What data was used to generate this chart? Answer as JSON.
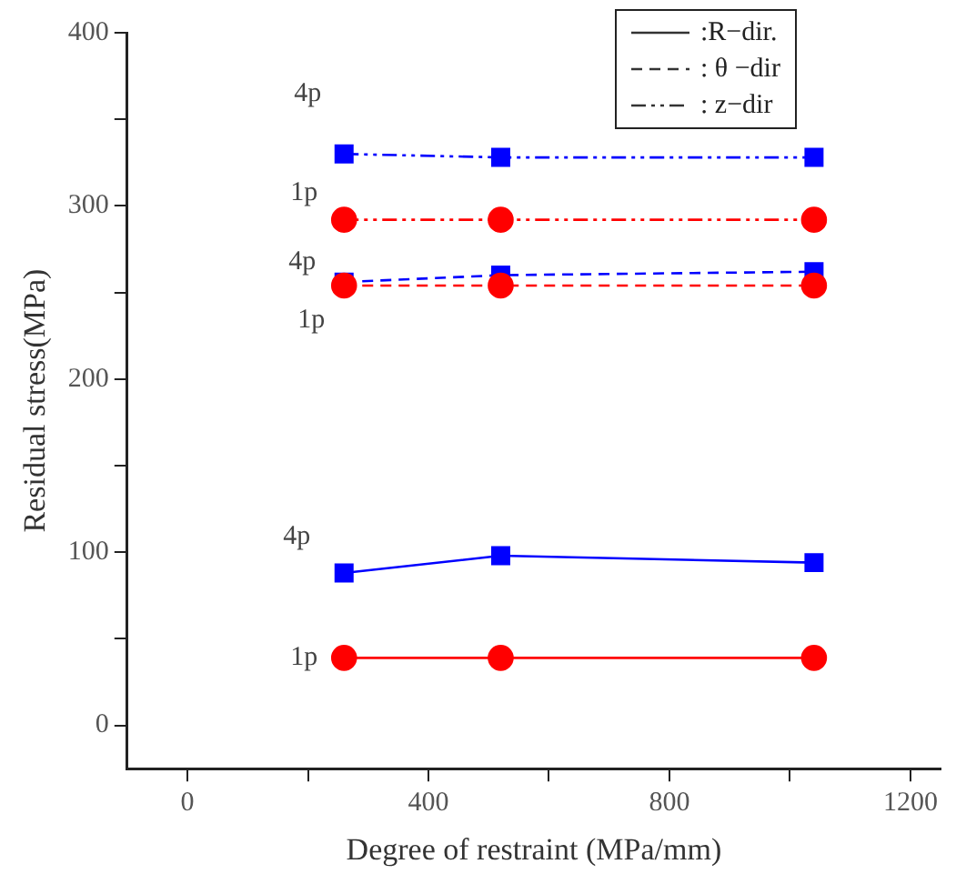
{
  "chart_data": {
    "type": "line",
    "xlabel": "Degree of restraint (MPa/mm)",
    "ylabel": "Residual stress(MPa)",
    "x": [
      260,
      520,
      1040
    ],
    "series": [
      {
        "color": "#ff0000",
        "values": [
          39,
          39,
          39
        ],
        "marker": "circle",
        "line_style": "solid"
      },
      {
        "color": "#0000ff",
        "values": [
          88,
          98,
          94
        ],
        "marker": "square",
        "line_style": "solid"
      },
      {
        "color": "#ff0000",
        "values": [
          254,
          254,
          254
        ],
        "marker": "circle",
        "line_style": "dashed"
      },
      {
        "color": "#0000ff",
        "values": [
          256,
          260,
          262
        ],
        "marker": "square",
        "line_style": "dashed"
      },
      {
        "color": "#ff0000",
        "values": [
          292,
          292,
          292
        ],
        "marker": "circle",
        "line_style": "dashdot"
      },
      {
        "color": "#0000ff",
        "values": [
          330,
          328,
          328
        ],
        "marker": "square",
        "line_style": "dashdot"
      }
    ],
    "xlim": [
      -100,
      1250
    ],
    "xticks": [
      0,
      {
        "value": 200,
        "label": null
      },
      400,
      {
        "value": 600,
        "label": null
      },
      800,
      {
        "value": 1000,
        "label": null
      },
      1200
    ],
    "ylim": [
      -25,
      400
    ],
    "yticks": [
      0,
      {
        "value": 50,
        "label": null
      },
      100,
      {
        "value": 150,
        "label": null
      },
      200,
      {
        "value": 250,
        "label": null
      },
      300,
      {
        "value": 350,
        "label": null
      },
      400
    ],
    "annotations": [
      "1p",
      "4p",
      "1p",
      "4p",
      "1p",
      "4p",
      ":R−dir.",
      ": θ −dir",
      ": z−dir"
    ],
    "grid": false
  }
}
